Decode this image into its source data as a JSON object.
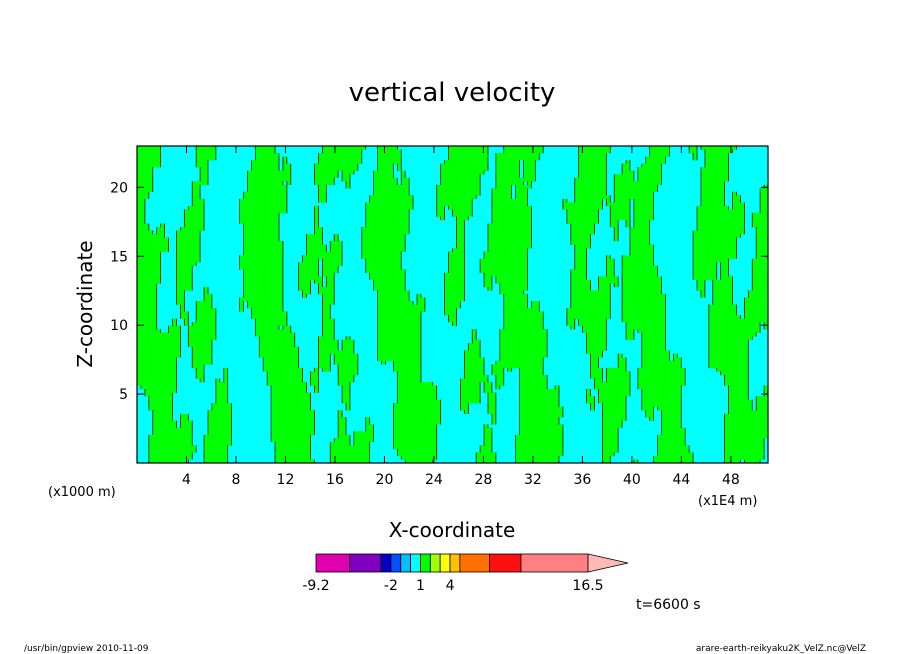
{
  "chart_data": {
    "type": "heatmap",
    "title": "vertical velocity",
    "xlabel": "X-coordinate",
    "ylabel": "Z-coordinate",
    "x_unit_left": "(x1000 m)",
    "x_unit_right": "(x1E4 m)",
    "xlim": [
      0,
      51
    ],
    "ylim": [
      0,
      23
    ],
    "xticks": [
      4,
      8,
      12,
      16,
      20,
      24,
      28,
      32,
      36,
      40,
      44,
      48
    ],
    "yticks": [
      5,
      10,
      15,
      20
    ],
    "colorbar": {
      "levels": [
        -9.2,
        -6,
        -4,
        -2,
        -1,
        0,
        1,
        2,
        3,
        4,
        6,
        8,
        12,
        16.5
      ],
      "colors": [
        "#e000b0",
        "#8000c0",
        "#0000c8",
        "#0050ff",
        "#00c0ff",
        "#00ffff",
        "#00ff00",
        "#a0ff00",
        "#ffff00",
        "#ffc000",
        "#ff7000",
        "#ff1010",
        "#ff8080"
      ],
      "tick_labels": [
        "-9.2",
        "-2",
        "1",
        "4",
        "16.5"
      ],
      "extend_color": "#ffb8b8"
    },
    "field_colors": {
      "negative": "#00ffff",
      "positive": "#00ff00",
      "contour": "#000000"
    }
  },
  "time_label": "t=6600 s",
  "footer": {
    "left": "/usr/bin/gpview  2010-11-09",
    "right": "arare-earth-reikyaku2K_VelZ.nc@VelZ"
  }
}
